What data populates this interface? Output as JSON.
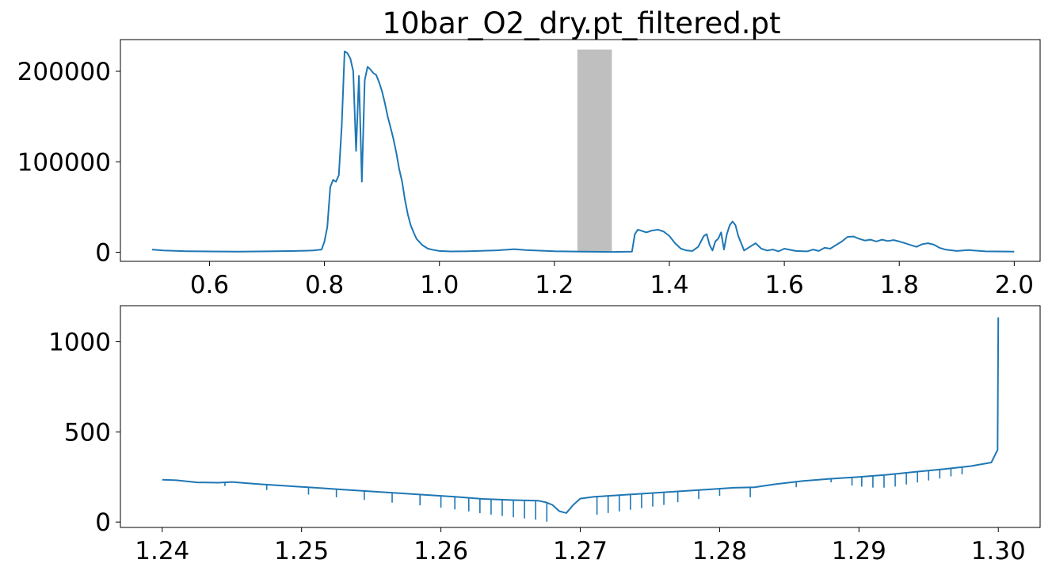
{
  "chart_data": [
    {
      "type": "line",
      "title": "10bar_O2_dry.pt_filtered.pt",
      "xlabel": "",
      "ylabel": "",
      "xlim": [
        0.445,
        2.045
      ],
      "ylim": [
        -10000,
        235000
      ],
      "xticks": [
        0.6,
        0.8,
        1.0,
        1.2,
        1.4,
        1.6,
        1.8,
        2.0
      ],
      "xtick_labels": [
        "0.6",
        "0.8",
        "1.0",
        "1.2",
        "1.4",
        "1.6",
        "1.8",
        "2.0"
      ],
      "yticks": [
        0,
        100000,
        200000
      ],
      "ytick_labels": [
        "0",
        "100000",
        "200000"
      ],
      "grid": false,
      "legend": "none",
      "highlight_band": {
        "x": [
          1.24,
          1.3
        ],
        "y": [
          0,
          224000
        ],
        "color": "#bfbfbf"
      },
      "series": [
        {
          "color": "#1f77b4",
          "x": [
            0.5,
            0.52,
            0.56,
            0.6,
            0.65,
            0.7,
            0.75,
            0.78,
            0.795,
            0.8,
            0.805,
            0.81,
            0.815,
            0.82,
            0.825,
            0.83,
            0.835,
            0.84,
            0.845,
            0.85,
            0.855,
            0.86,
            0.865,
            0.87,
            0.875,
            0.88,
            0.885,
            0.89,
            0.895,
            0.9,
            0.905,
            0.91,
            0.915,
            0.92,
            0.925,
            0.93,
            0.935,
            0.94,
            0.945,
            0.95,
            0.955,
            0.96,
            0.97,
            0.98,
            0.99,
            1.0,
            1.02,
            1.05,
            1.1,
            1.13,
            1.15,
            1.2,
            1.25,
            1.3,
            1.335,
            1.34,
            1.345,
            1.35,
            1.36,
            1.37,
            1.38,
            1.39,
            1.4,
            1.41,
            1.42,
            1.43,
            1.44,
            1.45,
            1.46,
            1.465,
            1.47,
            1.475,
            1.48,
            1.485,
            1.49,
            1.495,
            1.5,
            1.505,
            1.51,
            1.515,
            1.52,
            1.53,
            1.54,
            1.55,
            1.56,
            1.57,
            1.58,
            1.59,
            1.6,
            1.62,
            1.64,
            1.65,
            1.66,
            1.67,
            1.68,
            1.69,
            1.7,
            1.71,
            1.72,
            1.73,
            1.74,
            1.75,
            1.76,
            1.77,
            1.78,
            1.79,
            1.8,
            1.81,
            1.82,
            1.83,
            1.84,
            1.85,
            1.86,
            1.87,
            1.88,
            1.9,
            1.92,
            1.95,
            2.0
          ],
          "y": [
            3000,
            2000,
            1200,
            900,
            800,
            1000,
            1500,
            2000,
            3000,
            12000,
            28000,
            72000,
            80000,
            78000,
            85000,
            140000,
            222000,
            220000,
            214000,
            200000,
            112000,
            195000,
            78000,
            190000,
            205000,
            202000,
            198000,
            196000,
            188000,
            178000,
            165000,
            150000,
            138000,
            125000,
            110000,
            92000,
            78000,
            58000,
            42000,
            30000,
            22000,
            15000,
            8000,
            4000,
            2500,
            1500,
            900,
            1200,
            2200,
            3500,
            2500,
            1200,
            700,
            400,
            800,
            20000,
            25000,
            24000,
            22000,
            24000,
            25000,
            23000,
            18000,
            10000,
            4000,
            2000,
            1500,
            6000,
            18000,
            20000,
            8000,
            2000,
            12000,
            15000,
            22000,
            3000,
            20000,
            30000,
            34000,
            30000,
            18000,
            2000,
            6000,
            10000,
            4000,
            2000,
            3000,
            1000,
            4000,
            1500,
            1000,
            3000,
            1500,
            5000,
            4000,
            8000,
            12000,
            17000,
            17500,
            15000,
            13000,
            14000,
            12000,
            14000,
            12500,
            13500,
            12000,
            10000,
            8000,
            6000,
            9000,
            10000,
            8500,
            5000,
            3000,
            1500,
            2500,
            1000,
            800
          ]
        }
      ]
    },
    {
      "type": "line",
      "title": "",
      "xlabel": "",
      "ylabel": "",
      "xlim": [
        1.237,
        1.303
      ],
      "ylim": [
        -30,
        1200
      ],
      "xticks": [
        1.24,
        1.25,
        1.26,
        1.27,
        1.28,
        1.29,
        1.3
      ],
      "xtick_labels": [
        "1.24",
        "1.25",
        "1.26",
        "1.27",
        "1.28",
        "1.29",
        "1.30"
      ],
      "yticks": [
        0,
        500,
        1000
      ],
      "ytick_labels": [
        "0",
        "500",
        "1000"
      ],
      "grid": false,
      "legend": "none",
      "series": [
        {
          "color": "#1f77b4",
          "x": [
            1.24,
            1.241,
            1.2425,
            1.244,
            1.245,
            1.247,
            1.249,
            1.251,
            1.253,
            1.255,
            1.257,
            1.259,
            1.261,
            1.263,
            1.265,
            1.267,
            1.2675,
            1.268,
            1.2685,
            1.269,
            1.2695,
            1.27,
            1.271,
            1.273,
            1.275,
            1.277,
            1.279,
            1.281,
            1.2825,
            1.284,
            1.286,
            1.288,
            1.29,
            1.292,
            1.294,
            1.296,
            1.298,
            1.2995,
            1.29995,
            1.3
          ],
          "y": [
            235,
            232,
            220,
            218,
            222,
            210,
            200,
            190,
            180,
            170,
            160,
            150,
            140,
            128,
            122,
            118,
            110,
            95,
            60,
            50,
            95,
            130,
            140,
            150,
            160,
            170,
            180,
            190,
            193,
            210,
            228,
            240,
            250,
            262,
            278,
            293,
            310,
            330,
            400,
            1135
          ]
        }
      ],
      "absorption_lines": [
        {
          "x": 1.2445,
          "depth": 20
        },
        {
          "x": 1.2475,
          "depth": 30
        },
        {
          "x": 1.2505,
          "depth": 40
        },
        {
          "x": 1.2525,
          "depth": 45
        },
        {
          "x": 1.2545,
          "depth": 50
        },
        {
          "x": 1.2565,
          "depth": 55
        },
        {
          "x": 1.2585,
          "depth": 60
        },
        {
          "x": 1.26,
          "depth": 65
        },
        {
          "x": 1.261,
          "depth": 70
        },
        {
          "x": 1.262,
          "depth": 75
        },
        {
          "x": 1.2628,
          "depth": 80
        },
        {
          "x": 1.2636,
          "depth": 85
        },
        {
          "x": 1.2644,
          "depth": 90
        },
        {
          "x": 1.2652,
          "depth": 95
        },
        {
          "x": 1.266,
          "depth": 100
        },
        {
          "x": 1.2668,
          "depth": 105
        },
        {
          "x": 1.2676,
          "depth": 105
        },
        {
          "x": 1.2712,
          "depth": 100
        },
        {
          "x": 1.272,
          "depth": 95
        },
        {
          "x": 1.2728,
          "depth": 90
        },
        {
          "x": 1.2736,
          "depth": 85
        },
        {
          "x": 1.2744,
          "depth": 80
        },
        {
          "x": 1.2752,
          "depth": 75
        },
        {
          "x": 1.276,
          "depth": 70
        },
        {
          "x": 1.277,
          "depth": 60
        },
        {
          "x": 1.2785,
          "depth": 50
        },
        {
          "x": 1.28,
          "depth": 40
        },
        {
          "x": 1.2822,
          "depth": 55
        },
        {
          "x": 1.2855,
          "depth": 30
        },
        {
          "x": 1.288,
          "depth": 20
        },
        {
          "x": 1.2895,
          "depth": 45
        },
        {
          "x": 1.2902,
          "depth": 55
        },
        {
          "x": 1.291,
          "depth": 65
        },
        {
          "x": 1.2918,
          "depth": 70
        },
        {
          "x": 1.2926,
          "depth": 70
        },
        {
          "x": 1.2934,
          "depth": 65
        },
        {
          "x": 1.2942,
          "depth": 60
        },
        {
          "x": 1.295,
          "depth": 55
        },
        {
          "x": 1.2958,
          "depth": 50
        },
        {
          "x": 1.2966,
          "depth": 45
        },
        {
          "x": 1.2974,
          "depth": 40
        }
      ]
    }
  ]
}
